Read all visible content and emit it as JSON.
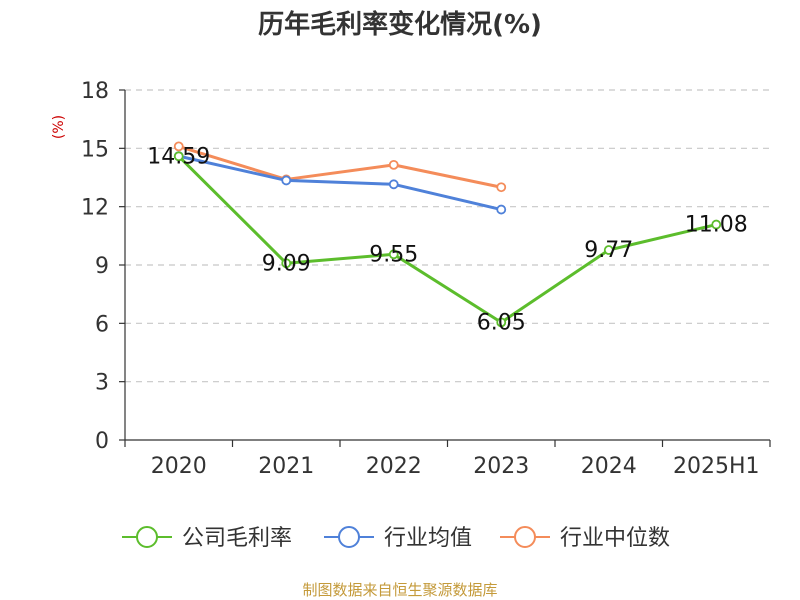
{
  "chart_data": {
    "type": "line",
    "title": "历年毛利率变化情况(%)",
    "ylabel": "(%)",
    "categories": [
      "2020",
      "2021",
      "2022",
      "2023",
      "2024",
      "2025H1"
    ],
    "ylim": [
      0,
      18
    ],
    "yticks": [
      0,
      3,
      6,
      9,
      12,
      15,
      18
    ],
    "grid": true,
    "legend_position": "bottom",
    "series": [
      {
        "name": "公司毛利率",
        "color": "#5cbd2c",
        "values": [
          14.59,
          9.09,
          9.55,
          6.05,
          9.77,
          11.08
        ],
        "labels": [
          "14.59",
          "9.09",
          "9.55",
          "6.05",
          "9.77",
          "11.08"
        ]
      },
      {
        "name": "行业均值",
        "color": "#4f81d9",
        "values": [
          14.6,
          13.35,
          13.15,
          11.85,
          null,
          null
        ]
      },
      {
        "name": "行业中位数",
        "color": "#f48c5a",
        "values": [
          15.1,
          13.4,
          14.15,
          13.0,
          null,
          null
        ]
      }
    ]
  },
  "colors": {
    "ylabel": "#cc0000",
    "source": "#c49a3a",
    "grid": "#c8c8c8",
    "axis": "#333333"
  },
  "source": "制图数据来自恒生聚源数据库"
}
